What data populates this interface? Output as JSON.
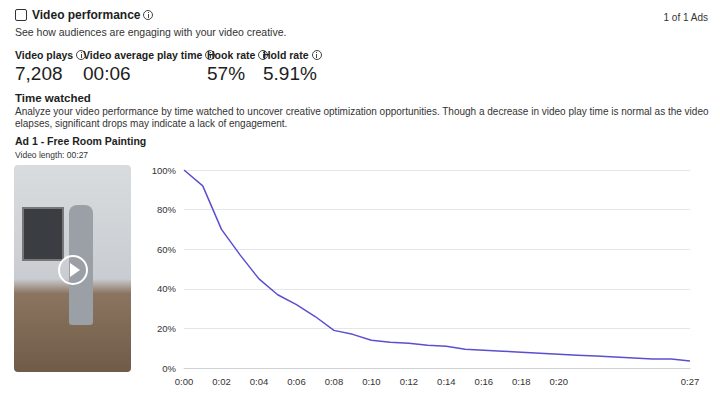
{
  "header": {
    "title": "Video performance",
    "subtitle": "See how audiences are engaging with your video creative.",
    "ad_count": "1 of 1 Ads"
  },
  "metrics": [
    {
      "label": "Video plays",
      "value": "7,208"
    },
    {
      "label": "Video average play time",
      "value": "00:06"
    },
    {
      "label": "Hook rate",
      "value": "57%"
    },
    {
      "label": "Hold rate",
      "value": "5.91%"
    }
  ],
  "section": {
    "title": "Time watched",
    "description": "Analyze your video performance by time watched to uncover creative optimization opportunities. Though a decrease in video play time is normal as the video elapses, significant drops may indicate a lack of engagement."
  },
  "chart_data": {
    "type": "line",
    "title": "Ad 1 - Free Room Painting",
    "subtitle": "Video length: 00:27",
    "x": [
      0,
      1,
      2,
      3,
      4,
      5,
      6,
      7,
      8,
      9,
      10,
      11,
      12,
      13,
      14,
      15,
      16,
      17,
      18,
      19,
      20,
      21,
      22,
      23,
      24,
      25,
      26,
      27
    ],
    "values": [
      100,
      92,
      70,
      57,
      45,
      37,
      32,
      26,
      19,
      17,
      14,
      13,
      12.5,
      11.5,
      11,
      9.5,
      9,
      8.5,
      8,
      7.5,
      7,
      6.5,
      6,
      5.5,
      5,
      4.5,
      4.5,
      3.5
    ],
    "color": "#5b4fcf",
    "xlim": [
      0,
      27
    ],
    "xticks": [
      {
        "value": 0,
        "label": "0:00"
      },
      {
        "value": 2,
        "label": "0:02"
      },
      {
        "value": 4,
        "label": "0:04"
      },
      {
        "value": 6,
        "label": "0:06"
      },
      {
        "value": 8,
        "label": "0:08"
      },
      {
        "value": 10,
        "label": "0:10"
      },
      {
        "value": 12,
        "label": "0:12"
      },
      {
        "value": 14,
        "label": "0:14"
      },
      {
        "value": 16,
        "label": "0:16"
      },
      {
        "value": 18,
        "label": "0:18"
      },
      {
        "value": 20,
        "label": "0:20"
      },
      {
        "value": 27,
        "label": "0:27"
      }
    ],
    "ylim": [
      0,
      100
    ],
    "yticks": [
      {
        "value": 0,
        "label": "0%"
      },
      {
        "value": 20,
        "label": "20%"
      },
      {
        "value": 40,
        "label": "40%"
      },
      {
        "value": 60,
        "label": "60%"
      },
      {
        "value": 80,
        "label": "80%"
      },
      {
        "value": 100,
        "label": "100%"
      }
    ],
    "grid": true
  }
}
